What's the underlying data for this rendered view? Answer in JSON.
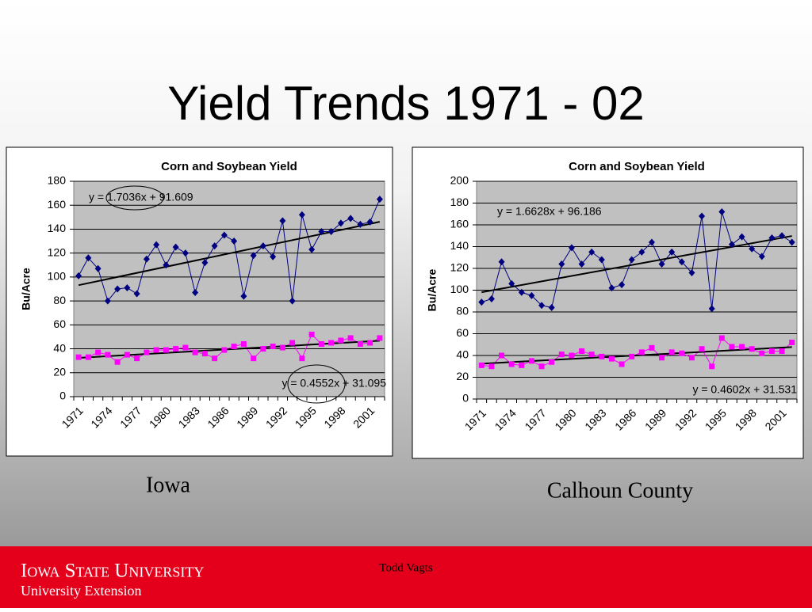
{
  "slide": {
    "title": "Yield Trends 1971 - 02",
    "captions": [
      "Iowa",
      "Calhoun County"
    ],
    "author": "Todd Vagts",
    "university": "Iowa State University",
    "unit": "University Extension"
  },
  "chart_data": [
    {
      "type": "line",
      "title": "Corn and Soybean Yield",
      "y_label": "Bu/Acre",
      "categories": [
        "1971",
        null,
        null,
        "1974",
        null,
        null,
        "1977",
        null,
        null,
        "1980",
        null,
        null,
        "1983",
        null,
        null,
        "1986",
        null,
        null,
        "1989",
        null,
        null,
        "1992",
        null,
        null,
        "1995",
        null,
        null,
        "1998",
        null,
        null,
        "2001",
        null
      ],
      "series": [
        {
          "color": "#000080",
          "marker": "diamond",
          "values": [
            101,
            116,
            107,
            80,
            90,
            91,
            86,
            115,
            127,
            110,
            125,
            120,
            87,
            112,
            126,
            135,
            130,
            84,
            118,
            126,
            117,
            147,
            80,
            152,
            123,
            138,
            138,
            145,
            149,
            144,
            146,
            165
          ]
        },
        {
          "color": "#ff00ff",
          "marker": "square",
          "values": [
            33,
            33,
            37,
            35,
            29,
            35,
            32,
            37,
            39,
            39,
            40,
            41,
            37,
            36,
            32,
            39,
            42,
            44,
            32,
            40,
            42,
            41,
            45,
            32,
            52,
            44,
            45,
            47,
            49,
            44,
            45,
            49
          ]
        }
      ],
      "annotations": [
        "y = 1.7036x + 91.609",
        "y = 0.4552x + 31.095"
      ],
      "ylim": [
        0,
        180
      ],
      "yticks": [
        0,
        20,
        40,
        60,
        80,
        100,
        120,
        140,
        160,
        180
      ],
      "grid": true,
      "trendline": true
    },
    {
      "type": "line",
      "title": "Corn and Soybean Yield",
      "y_label": "Bu/Acre",
      "categories": [
        "1971",
        null,
        null,
        "1974",
        null,
        null,
        "1977",
        null,
        null,
        "1980",
        null,
        null,
        "1983",
        null,
        null,
        "1986",
        null,
        null,
        "1989",
        null,
        null,
        "1992",
        null,
        null,
        "1995",
        null,
        null,
        "1998",
        null,
        null,
        "2001",
        null
      ],
      "series": [
        {
          "color": "#000080",
          "marker": "diamond",
          "values": [
            89,
            92,
            126,
            106,
            98,
            95,
            86,
            84,
            124,
            139,
            124,
            135,
            128,
            102,
            105,
            128,
            135,
            144,
            124,
            135,
            126,
            116,
            168,
            83,
            172,
            142,
            149,
            138,
            131,
            148,
            150,
            144
          ]
        },
        {
          "color": "#ff00ff",
          "marker": "square",
          "values": [
            31,
            30,
            40,
            32,
            31,
            35,
            30,
            34,
            41,
            40,
            44,
            41,
            39,
            37,
            32,
            39,
            43,
            47,
            38,
            43,
            42,
            38,
            46,
            30,
            56,
            48,
            48,
            46,
            42,
            44,
            44,
            52
          ]
        }
      ],
      "annotations": [
        "y = 1.6628x + 96.186",
        "y = 0.4602x + 31.531"
      ],
      "ylim": [
        0,
        200
      ],
      "yticks": [
        0,
        20,
        40,
        60,
        80,
        100,
        120,
        140,
        160,
        180,
        200
      ],
      "grid": true,
      "trendline": true
    }
  ]
}
